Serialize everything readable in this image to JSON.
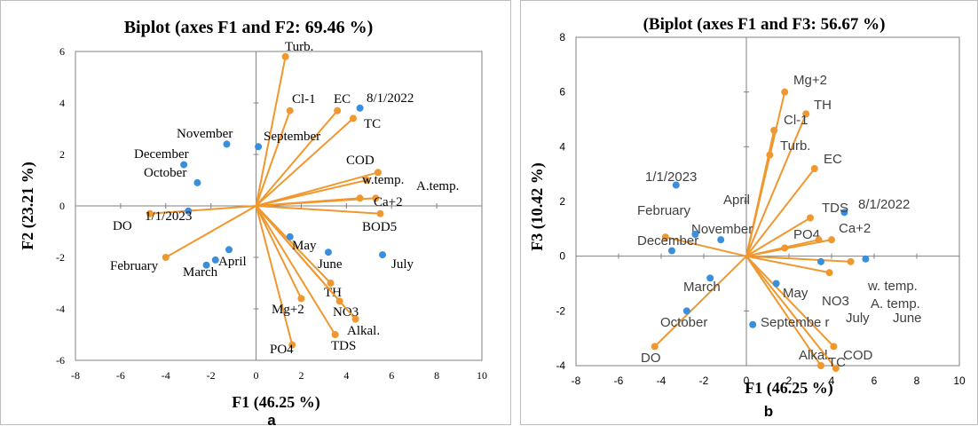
{
  "colors": {
    "vector": "#f0972e",
    "point": "#3a8fdd",
    "axis": "#808080",
    "text": "#000000"
  },
  "chart_data": [
    {
      "type": "scatter",
      "title": "Biplot (axes F1 and F2: 69.46 %)",
      "xlabel": "F1 (46.25 %)",
      "ylabel": "F2 (23.21 %)",
      "sublabel": "a",
      "xlim": [
        -8,
        10
      ],
      "ylim": [
        -6,
        6
      ],
      "xticks": [
        -8,
        -6,
        -4,
        -2,
        0,
        2,
        4,
        6,
        8,
        10
      ],
      "yticks": [
        -6,
        -4,
        -2,
        0,
        2,
        4,
        6
      ],
      "vectors": [
        {
          "name": "Turb.",
          "x": 1.3,
          "y": 5.8
        },
        {
          "name": "Cl-1",
          "x": 1.5,
          "y": 3.7
        },
        {
          "name": "EC",
          "x": 3.6,
          "y": 3.7
        },
        {
          "name": "TC",
          "x": 4.3,
          "y": 3.4
        },
        {
          "name": "COD",
          "x": 5.4,
          "y": 1.3
        },
        {
          "name": "w.temp.",
          "x": 4.9,
          "y": 1.0
        },
        {
          "name": "A.temp.",
          "x": 5.3,
          "y": 0.3
        },
        {
          "name": "Ca+2",
          "x": 4.6,
          "y": 0.3
        },
        {
          "name": "BOD5",
          "x": 5.5,
          "y": -0.3
        },
        {
          "name": "TH",
          "x": 3.3,
          "y": -3.0
        },
        {
          "name": "NO3",
          "x": 3.7,
          "y": -3.7
        },
        {
          "name": "Alkal.",
          "x": 4.4,
          "y": -4.4
        },
        {
          "name": "TDS",
          "x": 3.5,
          "y": -5.0
        },
        {
          "name": "PO4",
          "x": 1.6,
          "y": -5.4
        },
        {
          "name": "Mg+2",
          "x": 2.0,
          "y": -3.6
        },
        {
          "name": "DO",
          "x": -4.7,
          "y": -0.3
        },
        {
          "name": "February",
          "x": -4.0,
          "y": -2.0
        }
      ],
      "points": [
        {
          "name": "8/1/2022",
          "x": 4.6,
          "y": 3.8
        },
        {
          "name": "September",
          "x": 0.1,
          "y": 2.3
        },
        {
          "name": "November",
          "x": -1.3,
          "y": 2.4
        },
        {
          "name": "December",
          "x": -3.2,
          "y": 1.6
        },
        {
          "name": "October",
          "x": -2.6,
          "y": 0.9
        },
        {
          "name": "1/1/2023",
          "x": -3.0,
          "y": -0.2
        },
        {
          "name": "May",
          "x": 1.5,
          "y": -1.2
        },
        {
          "name": "June",
          "x": 3.2,
          "y": -1.8
        },
        {
          "name": "July",
          "x": 5.6,
          "y": -1.9
        },
        {
          "name": "April",
          "x": -1.2,
          "y": -1.7
        },
        {
          "name": "March",
          "x": -1.8,
          "y": -2.1
        },
        {
          "name": "",
          "x": -2.2,
          "y": -2.3
        }
      ]
    },
    {
      "type": "scatter",
      "title": "(Biplot (axes F1 and F3: 56.67 %)",
      "xlabel": "F1 (46.25 %)",
      "ylabel": "F3 (10.42 %)",
      "sublabel": "b",
      "xlim": [
        -8,
        10
      ],
      "ylim": [
        -4,
        8
      ],
      "xticks": [
        -8,
        -6,
        -4,
        -2,
        0,
        2,
        4,
        6,
        8,
        10
      ],
      "yticks": [
        -4,
        -2,
        0,
        2,
        4,
        6,
        8
      ],
      "vectors": [
        {
          "name": "Mg+2",
          "x": 1.8,
          "y": 6.0
        },
        {
          "name": "TH",
          "x": 2.8,
          "y": 5.2
        },
        {
          "name": "Cl-1",
          "x": 1.3,
          "y": 4.6
        },
        {
          "name": "Turb.",
          "x": 1.1,
          "y": 3.7
        },
        {
          "name": "EC",
          "x": 3.2,
          "y": 3.2
        },
        {
          "name": "",
          "x": 3.0,
          "y": 1.4
        },
        {
          "name": "",
          "x": 4.0,
          "y": 0.6
        },
        {
          "name": "PO4",
          "x": 1.8,
          "y": 0.3
        },
        {
          "name": "",
          "x": 4.9,
          "y": -0.2
        },
        {
          "name": "",
          "x": 3.9,
          "y": -0.6
        },
        {
          "name": "",
          "x": 3.4,
          "y": 0.6
        },
        {
          "name": "COD",
          "x": 4.1,
          "y": -3.3
        },
        {
          "name": "Alkal.",
          "x": 3.5,
          "y": -4.0
        },
        {
          "name": "TC",
          "x": 4.2,
          "y": -4.1
        },
        {
          "name": "DO",
          "x": -4.3,
          "y": -3.3
        },
        {
          "name": "",
          "x": -3.8,
          "y": 0.7
        }
      ],
      "points": [
        {
          "name": "8/1/2022",
          "x": 4.6,
          "y": 1.6
        },
        {
          "name": "1/1/2023",
          "x": -3.3,
          "y": 2.6
        },
        {
          "name": "November",
          "x": -1.2,
          "y": 0.6
        },
        {
          "name": "December",
          "x": -2.4,
          "y": 0.8
        },
        {
          "name": "",
          "x": -3.5,
          "y": 0.2
        },
        {
          "name": "March",
          "x": -1.7,
          "y": -0.8
        },
        {
          "name": "October",
          "x": -2.8,
          "y": -2.0
        },
        {
          "name": "May",
          "x": 1.4,
          "y": -1.0
        },
        {
          "name": "Septembe r",
          "x": 0.3,
          "y": -2.5
        },
        {
          "name": "w. temp.",
          "x": 5.6,
          "y": -0.1
        },
        {
          "name": "",
          "x": 3.5,
          "y": -0.2
        }
      ],
      "extra_labels": [
        "February",
        "April",
        "TDS",
        "Ca+2",
        "NO3",
        "A. temp.",
        "July",
        "June"
      ]
    }
  ]
}
